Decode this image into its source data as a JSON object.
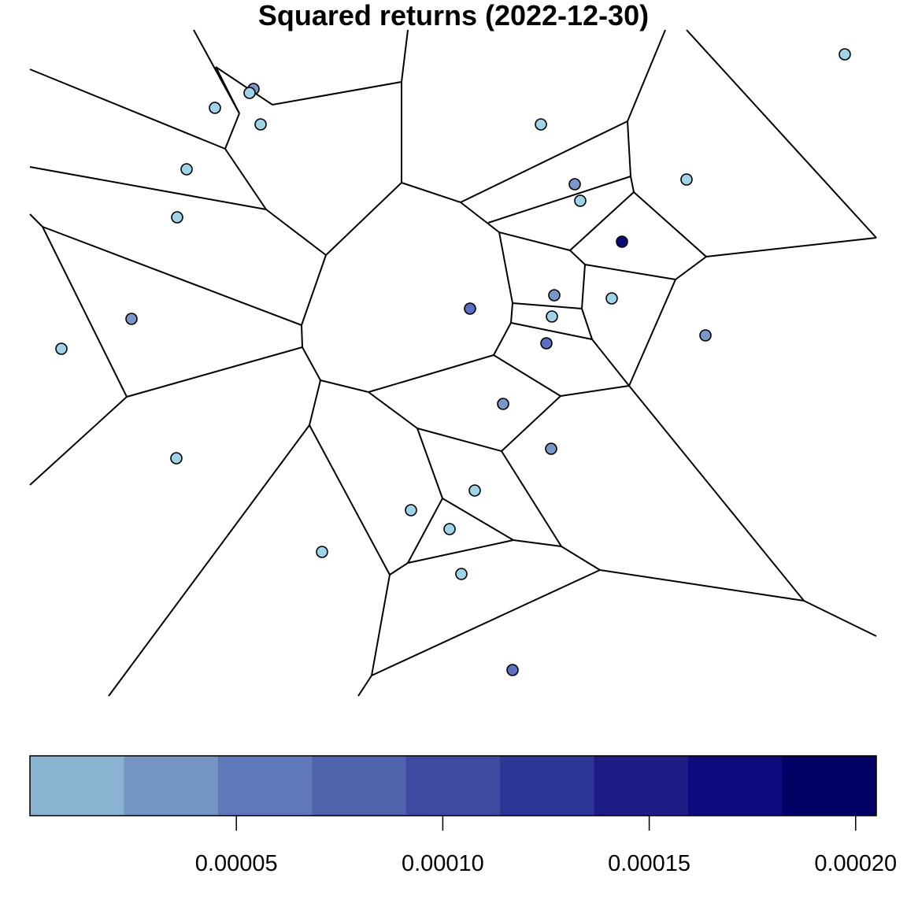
{
  "chart_data": {
    "type": "voronoi",
    "title": "Squared returns (2022-12-30)",
    "xlabel": "",
    "ylabel": "",
    "point_fill_levels": [
      "#9fd4e8",
      "#7b97c9",
      "#5a6fc2",
      "#0c0a78"
    ],
    "cell_edge_color": "#000000",
    "colorbar": {
      "range": [
        0.0,
        0.000205
      ],
      "ticks": [
        5e-05,
        0.0001,
        0.00015,
        0.0002
      ],
      "tick_labels": [
        "0.00005",
        "0.00010",
        "0.00015",
        "0.00020"
      ],
      "bin_colors": [
        "#8ab3d2",
        "#7595c3",
        "#5f78b8",
        "#4f62ab",
        "#3d4aa0",
        "#2d3596",
        "#1d1d85",
        "#0c0a7d",
        "#010166"
      ]
    }
  }
}
